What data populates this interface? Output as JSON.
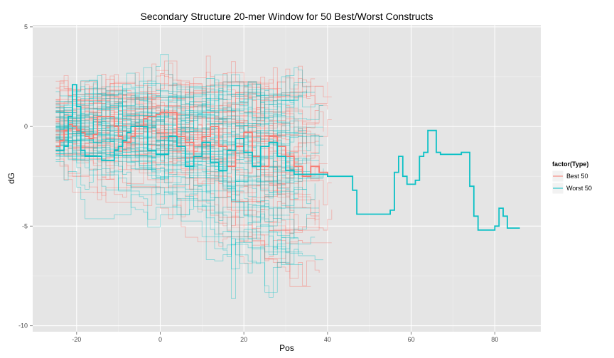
{
  "chart_data": {
    "type": "line",
    "title": "Secondary Structure 20-mer Window for 50 Best/Worst Constructs",
    "xlabel": "Pos",
    "ylabel": "dG",
    "xlim": [
      -30.5,
      91
    ],
    "ylim": [
      -10.3,
      5.1
    ],
    "x_ticks": [
      -20,
      0,
      20,
      40,
      60,
      80
    ],
    "x_tick_labels": [
      "-20",
      "0",
      "20",
      "40",
      "60",
      "80"
    ],
    "y_ticks": [
      -10,
      -5,
      0,
      5
    ],
    "y_tick_labels": [
      "-10",
      "-5",
      "0",
      "5"
    ],
    "grid": true,
    "background": "#e5e5e5",
    "legend": {
      "title": "factor(Type)",
      "placement": "right",
      "entries": [
        {
          "label": "Best 50",
          "color": "#f8766d"
        },
        {
          "label": "Worst 50",
          "color": "#00bfc4"
        }
      ]
    },
    "series_summary": {
      "Best 50": {
        "count": 50,
        "color": "#f8766d",
        "x_range": [
          -25,
          42
        ]
      },
      "Worst 50": {
        "count": 50,
        "color": "#00bfc4",
        "x_range": [
          -25,
          86
        ]
      }
    },
    "series": [
      {
        "name": "Best 50",
        "color": "#f8766d",
        "emphasis": true,
        "x": [
          -25,
          -24,
          -23,
          -22,
          -21,
          -20,
          -19,
          -18,
          -17,
          -16,
          -15,
          -14,
          -13,
          -12,
          -11,
          -10,
          -9,
          -8,
          -7,
          -6,
          -5,
          -4,
          -3,
          -2,
          -1,
          0,
          2,
          4,
          6,
          8,
          10,
          12,
          14,
          16,
          18,
          20,
          22,
          24,
          26,
          28,
          30,
          32,
          34,
          36,
          38,
          40
        ],
        "y": [
          -1.0,
          -0.7,
          -0.2,
          0.1,
          0.0,
          -0.2,
          -0.3,
          -0.5,
          -0.6,
          -0.4,
          0.5,
          0.5,
          0.5,
          0.5,
          0.0,
          -0.5,
          -0.8,
          -0.8,
          -0.5,
          0.0,
          0.0,
          0.4,
          0.5,
          0.5,
          0.6,
          0.7,
          0.7,
          -0.5,
          -0.8,
          -1.5,
          -0.5,
          0.0,
          -1.0,
          -2.0,
          -1.0,
          -0.3,
          -1.5,
          -2.0,
          -0.5,
          -1.0,
          -1.5,
          -2.0,
          -2.5,
          -2.0,
          -2.3,
          -2.5
        ]
      },
      {
        "name": "Worst 50",
        "color": "#00bfc4",
        "emphasis": true,
        "x": [
          -25,
          -24,
          -23,
          -22,
          -21,
          -20,
          -19,
          -18,
          -17,
          -16,
          -15,
          -14,
          -13,
          -12,
          -11,
          -10,
          -9,
          -8,
          -7,
          -6,
          -5,
          -4,
          -3,
          -2,
          -1,
          0,
          2,
          4,
          6,
          8,
          10,
          12,
          14,
          16,
          18,
          20,
          22,
          24,
          26,
          28,
          30,
          32,
          34,
          36,
          38,
          40,
          41,
          42,
          43,
          44,
          45,
          46,
          47,
          48,
          50,
          52,
          54,
          55,
          56,
          57,
          58,
          59,
          60,
          61,
          62,
          63,
          64,
          65,
          66,
          67,
          68,
          70,
          72,
          73,
          74,
          75,
          76,
          77,
          78,
          79,
          80,
          81,
          82,
          83,
          84,
          85,
          86
        ],
        "y": [
          -1.2,
          -1.2,
          -1.0,
          0.5,
          2.1,
          1.0,
          -1.2,
          -1.5,
          -1.5,
          -1.5,
          -1.5,
          -1.7,
          -1.7,
          -1.7,
          -1.2,
          -1.0,
          -0.7,
          -0.3,
          0.0,
          0.0,
          0.0,
          0.0,
          -1.2,
          -1.2,
          -1.4,
          -1.4,
          -0.5,
          -1.0,
          -2.0,
          -1.5,
          -0.8,
          -1.8,
          -2.2,
          -1.2,
          -0.6,
          -1.3,
          -2.0,
          -1.0,
          -0.8,
          -1.5,
          -2.2,
          -2.4,
          -2.4,
          -2.4,
          -2.4,
          -2.5,
          -2.5,
          -2.5,
          -2.5,
          -2.5,
          -2.5,
          -3.2,
          -4.4,
          -4.4,
          -4.4,
          -4.4,
          -4.4,
          -4.2,
          -2.3,
          -1.5,
          -2.5,
          -2.9,
          -2.9,
          -2.7,
          -1.5,
          -1.3,
          -0.2,
          -0.2,
          -1.3,
          -1.4,
          -1.4,
          -1.4,
          -1.3,
          -1.3,
          -3.0,
          -4.5,
          -5.2,
          -5.2,
          -5.2,
          -5.2,
          -5.0,
          -4.1,
          -4.5,
          -5.1,
          -5.1,
          -5.1,
          -5.1
        ]
      }
    ]
  }
}
